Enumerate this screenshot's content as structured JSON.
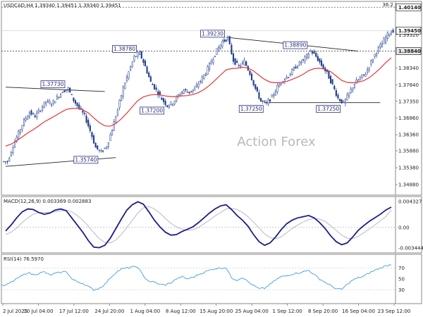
{
  "chart_data": [
    {
      "type": "candlestick",
      "title": "USDCAD,H4",
      "ohlc_readout": "1.39340 1.39451 1.39340 1.39451",
      "watermark": "Action Forex",
      "ylim": [
        1.3465,
        1.4023
      ],
      "yticks": [
        "1.40140",
        "1.39320",
        "1.38340",
        "1.37840",
        "1.37350",
        "1.36860",
        "1.36360",
        "1.35880",
        "1.35380",
        "1.34880"
      ],
      "ytick_values": [
        1.4014,
        1.3932,
        1.3834,
        1.3784,
        1.3735,
        1.3686,
        1.3636,
        1.3588,
        1.3538,
        1.3488
      ],
      "top_corner_label": "36.2",
      "price_labels": [
        {
          "text": "1.40140",
          "value": 1.4014,
          "style": "dotted-line"
        },
        {
          "text": "1.39450",
          "value": 1.3945,
          "style": "current"
        },
        {
          "text": "1.38840",
          "value": 1.3884,
          "style": "dotted-line-dark"
        }
      ],
      "close_series": [
        1.3556,
        1.3603,
        1.3641,
        1.3678,
        1.3702,
        1.3691,
        1.3712,
        1.3735,
        1.3728,
        1.3746,
        1.3765,
        1.3772,
        1.3738,
        1.3715,
        1.3692,
        1.3648,
        1.3598,
        1.3584,
        1.3602,
        1.3652,
        1.3712,
        1.3775,
        1.3822,
        1.3866,
        1.3878,
        1.3838,
        1.3792,
        1.3768,
        1.3742,
        1.3722,
        1.3731,
        1.3752,
        1.3768,
        1.3762,
        1.3772,
        1.3796,
        1.3821,
        1.3855,
        1.3886,
        1.3912,
        1.3922,
        1.3856,
        1.3838,
        1.3853,
        1.3818,
        1.3772,
        1.3735,
        1.3728,
        1.3748,
        1.3778,
        1.3798,
        1.3811,
        1.3832,
        1.3848,
        1.3862,
        1.3886,
        1.3868,
        1.3842,
        1.3818,
        1.3783,
        1.3744,
        1.3729,
        1.3758,
        1.3788,
        1.3804,
        1.3818,
        1.3852,
        1.3884,
        1.3906,
        1.3935,
        1.3945
      ],
      "ema_series": [
        1.3602,
        1.3608,
        1.3618,
        1.3629,
        1.3641,
        1.3651,
        1.3662,
        1.3674,
        1.3683,
        1.3692,
        1.3702,
        1.3711,
        1.3714,
        1.3714,
        1.371,
        1.3701,
        1.3686,
        1.3672,
        1.3662,
        1.3661,
        1.3669,
        1.3683,
        1.37,
        1.3719,
        1.3737,
        1.3748,
        1.3753,
        1.3755,
        1.3754,
        1.3751,
        1.3749,
        1.3749,
        1.3751,
        1.3752,
        1.3755,
        1.3761,
        1.377,
        1.3782,
        1.3797,
        1.3813,
        1.3828,
        1.3832,
        1.3833,
        1.3836,
        1.3834,
        1.3825,
        1.3812,
        1.38,
        1.3792,
        1.379,
        1.3791,
        1.3794,
        1.38,
        1.3807,
        1.3815,
        1.3826,
        1.3832,
        1.3833,
        1.3831,
        1.3823,
        1.381,
        1.3797,
        1.3791,
        1.379,
        1.3792,
        1.3796,
        1.3805,
        1.3818,
        1.3833,
        1.385,
        1.3864
      ],
      "annotations": [
        {
          "text": "1.37730",
          "index": 11,
          "value": 1.3773
        },
        {
          "text": "1.38780",
          "index": 24,
          "value": 1.3878
        },
        {
          "text": "1.37200",
          "index": 29,
          "value": 1.372
        },
        {
          "text": "1.39230",
          "index": 40,
          "value": 1.3923
        },
        {
          "text": "1.38890",
          "index": 55,
          "value": 1.3889
        },
        {
          "text": "1.37250",
          "index": 47,
          "value": 1.3725
        },
        {
          "text": "1.37250",
          "index": 61,
          "value": 1.3725
        },
        {
          "text": "1.35740",
          "index": 17,
          "value": 1.3574
        }
      ],
      "trendlines": [
        {
          "from": [
            0,
            1.3777
          ],
          "to": [
            18,
            1.3764
          ]
        },
        {
          "from": [
            0,
            1.3542
          ],
          "to": [
            20,
            1.3568
          ]
        },
        {
          "from": [
            40,
            1.3925
          ],
          "to": [
            64,
            1.3884
          ]
        },
        {
          "from": [
            47,
            1.3731
          ],
          "to": [
            68,
            1.3731
          ]
        }
      ],
      "colors": {
        "candles": "#1e3b8c",
        "ema": "#e8333a",
        "annotation": "#2b2f7a"
      }
    },
    {
      "type": "line",
      "title": "MACD(12,26,9) 0.003369 0.002883",
      "ylim": [
        -0.0038,
        0.0047
      ],
      "yticks": [
        "0.004327",
        "0.00",
        "-0.003444"
      ],
      "ytick_values": [
        0.004327,
        0.0,
        -0.003444
      ],
      "series": [
        {
          "values": [
            -0.0006,
            0.0004,
            0.0016,
            0.0026,
            0.0031,
            0.003,
            0.0025,
            0.0022,
            0.0024,
            0.0029,
            0.0031,
            0.0028,
            0.0016,
            0.0004,
            -0.0008,
            -0.0022,
            -0.0033,
            -0.0034,
            -0.003,
            -0.0018,
            -0.0002,
            0.0014,
            0.0029,
            0.0038,
            0.0043,
            0.0039,
            0.0026,
            0.0012,
            0.0001,
            -0.0008,
            -0.0013,
            -0.0012,
            -0.0007,
            -0.0003,
            0.0001,
            0.0008,
            0.0016,
            0.0024,
            0.0031,
            0.0036,
            0.0038,
            0.003,
            0.002,
            0.0012,
            0.0002,
            -0.0012,
            -0.0024,
            -0.003,
            -0.0026,
            -0.0016,
            -0.0004,
            0.0006,
            0.0012,
            0.0016,
            0.0018,
            0.002,
            0.0016,
            0.0008,
            -0.0002,
            -0.0014,
            -0.0024,
            -0.0029,
            -0.0026,
            -0.0016,
            -0.0005,
            0.0003,
            0.001,
            0.0016,
            0.0022,
            0.0029,
            0.0034
          ],
          "color": "#1c1c8c"
        },
        {
          "values": [
            -0.0012,
            -0.0008,
            -0.0001,
            0.0008,
            0.0016,
            0.0022,
            0.0025,
            0.0025,
            0.0025,
            0.0026,
            0.0028,
            0.0029,
            0.0026,
            0.002,
            0.0012,
            0.0002,
            -0.0009,
            -0.0019,
            -0.0025,
            -0.0026,
            -0.0021,
            -0.0012,
            0.0,
            0.0012,
            0.0024,
            0.0033,
            0.0035,
            0.0031,
            0.0024,
            0.0015,
            0.0007,
            0.0001,
            -0.0003,
            -0.0005,
            -0.0004,
            0.0,
            0.0006,
            0.0012,
            0.0019,
            0.0025,
            0.0031,
            0.0032,
            0.003,
            0.0025,
            0.0018,
            0.0009,
            -0.0001,
            -0.0011,
            -0.0017,
            -0.0019,
            -0.0016,
            -0.0009,
            -0.0002,
            0.0004,
            0.0009,
            0.0013,
            0.0015,
            0.0014,
            0.001,
            0.0003,
            -0.0005,
            -0.0013,
            -0.0018,
            -0.0019,
            -0.0015,
            -0.0009,
            -0.0003,
            0.0004,
            0.0011,
            0.0018,
            0.0029
          ],
          "color": "#b8b8c8"
        }
      ]
    },
    {
      "type": "line",
      "title": "RSI(14) 76.5970",
      "ylim": [
        10,
        90
      ],
      "yticks": [
        "70",
        "50",
        "30"
      ],
      "ytick_values": [
        70,
        50,
        30
      ],
      "series": [
        {
          "values": [
            38,
            44,
            50,
            56,
            62,
            58,
            60,
            63,
            57,
            60,
            62,
            64,
            50,
            45,
            42,
            36,
            30,
            33,
            40,
            52,
            62,
            68,
            70,
            72,
            72,
            55,
            46,
            44,
            40,
            39,
            43,
            50,
            54,
            50,
            53,
            58,
            62,
            66,
            69,
            70,
            71,
            52,
            48,
            53,
            45,
            38,
            32,
            33,
            40,
            48,
            54,
            56,
            59,
            61,
            63,
            66,
            58,
            50,
            44,
            38,
            32,
            31,
            40,
            48,
            52,
            55,
            61,
            66,
            70,
            74,
            76.6
          ],
          "color": "#2f8fdc"
        }
      ]
    }
  ],
  "x_axis_labels": [
    "2 Jul 2025",
    "10 Jul 04:00",
    "17 Jul 12:00",
    "24 Jul 20:00",
    "1 Aug 04:00",
    "8 Aug 12:00",
    "15 Aug 20:00",
    "25 Aug 04:00",
    "1 Sep 12:00",
    "8 Sep 20:00",
    "16 Sep 04:00",
    "23 Sep 12:00"
  ]
}
